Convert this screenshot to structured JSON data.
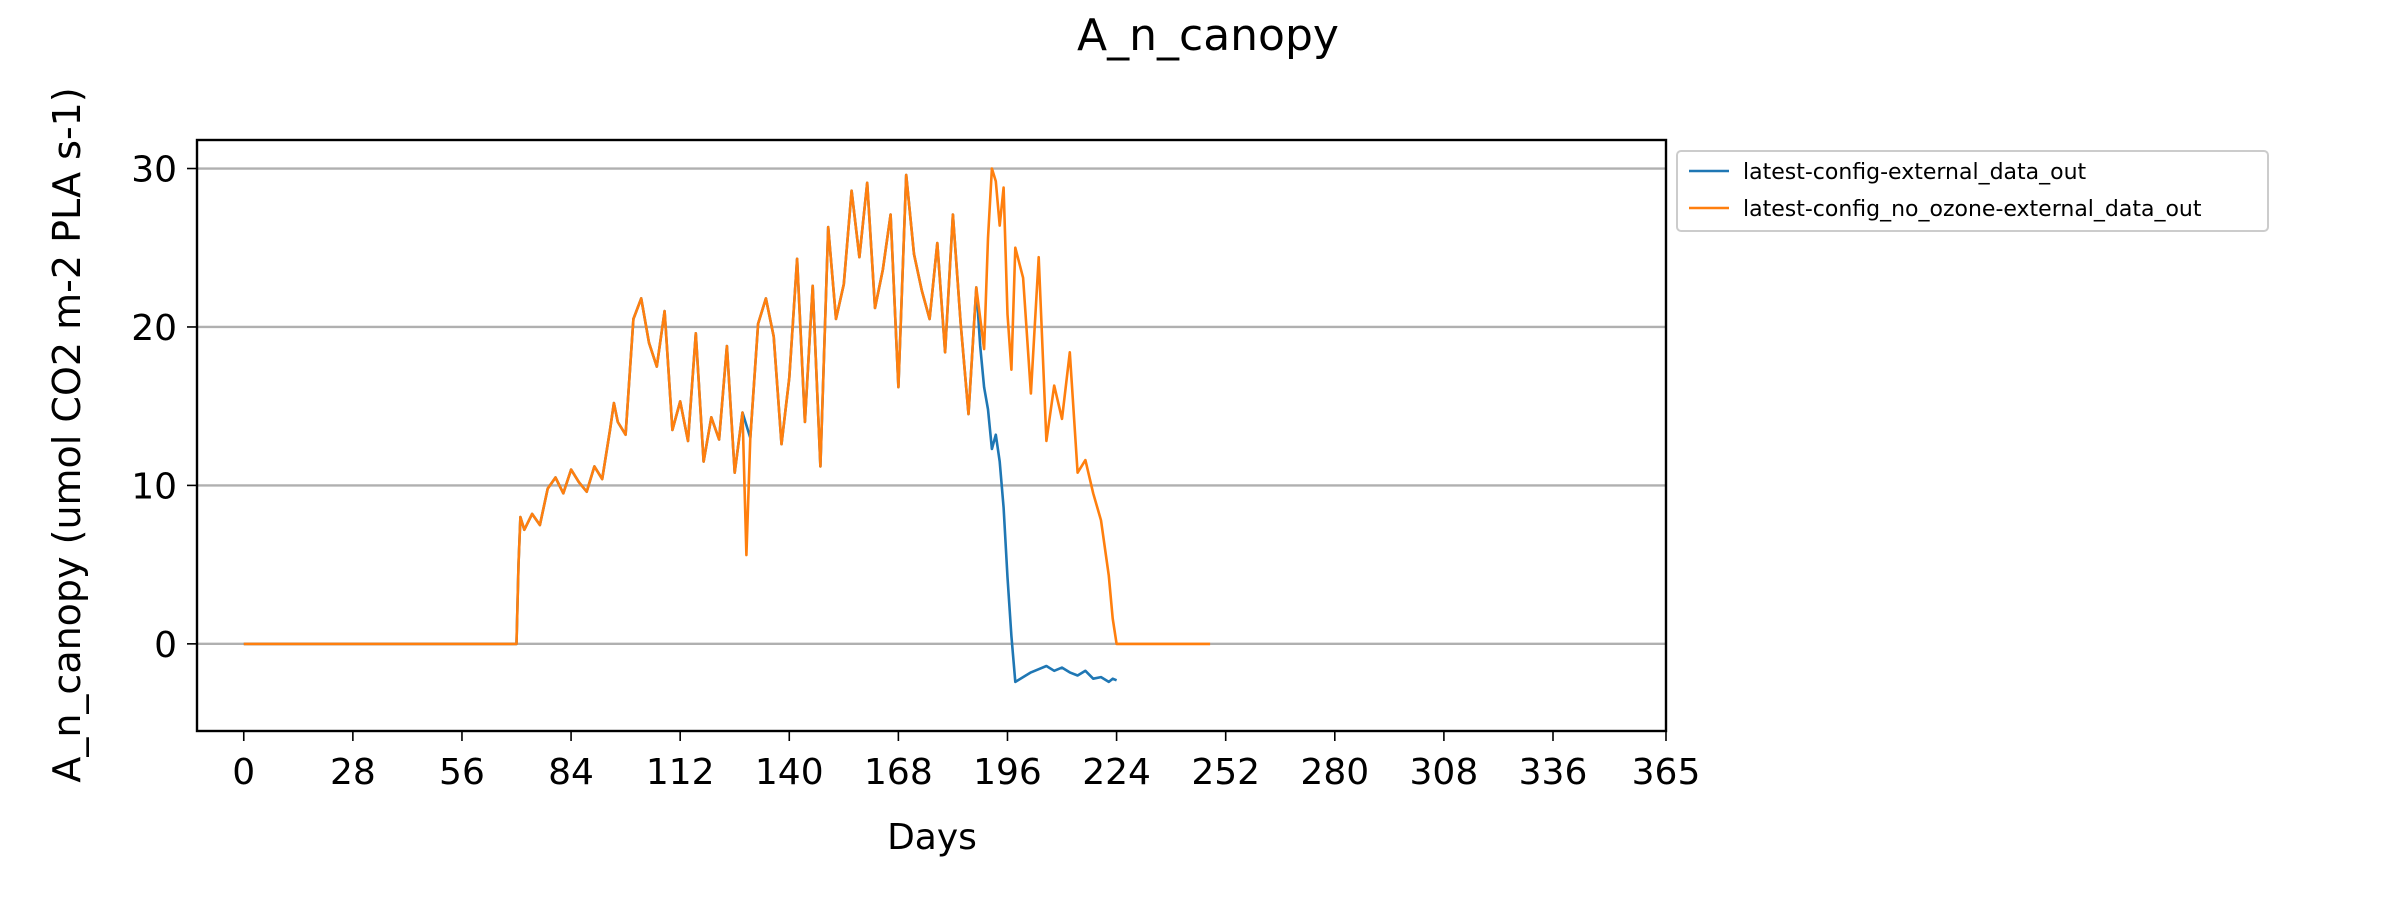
{
  "chart_data": {
    "type": "line",
    "title": "A_n_canopy",
    "xlabel": "Days",
    "ylabel": "A_n_canopy (umol CO2 m-2 PLA s-1)",
    "xlim": [
      -12,
      365
    ],
    "ylim": [
      -5.5,
      31.8
    ],
    "xticks": [
      0,
      28,
      56,
      84,
      112,
      140,
      168,
      196,
      224,
      252,
      280,
      308,
      336,
      365
    ],
    "yticks": [
      0,
      10,
      20,
      30
    ],
    "grid": "y-axis",
    "legend_position": "outside-top-right",
    "series": [
      {
        "name": "latest-config-external_data_out",
        "color": "#1f77b4",
        "x": [
          0,
          20,
          40,
          60,
          70,
          70.5,
          71,
          72,
          74,
          76,
          78,
          80,
          82,
          84,
          86,
          88,
          90,
          92,
          94,
          95,
          96,
          98,
          100,
          102,
          104,
          106,
          108,
          110,
          112,
          114,
          116,
          118,
          120,
          122,
          124,
          126,
          128,
          130,
          132,
          134,
          136,
          138,
          140,
          142,
          144,
          146,
          148,
          150,
          152,
          154,
          156,
          158,
          160,
          162,
          164,
          166,
          168,
          170,
          172,
          174,
          176,
          178,
          180,
          182,
          184,
          186,
          188,
          189,
          190,
          191,
          192,
          193,
          194,
          195,
          196,
          197,
          198,
          200,
          202,
          204,
          206,
          208,
          210,
          212,
          214,
          216,
          218,
          220,
          222,
          223,
          224
        ],
        "y": [
          0,
          0,
          0,
          0,
          0,
          5,
          8,
          7.2,
          8.2,
          7.5,
          9.8,
          10.5,
          9.5,
          11,
          10.2,
          9.6,
          11.2,
          10.4,
          13.5,
          15.2,
          14,
          13.2,
          20.5,
          21.8,
          19,
          17.5,
          21,
          13.5,
          15.3,
          12.8,
          19.6,
          11.5,
          14.3,
          12.9,
          18.8,
          10.8,
          14.6,
          13,
          20.2,
          21.8,
          19.4,
          12.6,
          16.8,
          24.3,
          14,
          22.6,
          11.2,
          26.3,
          20.5,
          22.7,
          28.6,
          24.4,
          29.1,
          21.2,
          23.6,
          27.1,
          16.2,
          29.6,
          24.6,
          22.3,
          20.5,
          25.3,
          18.4,
          27.1,
          20.2,
          14.5,
          22.5,
          18.8,
          16.2,
          14.8,
          12.3,
          13.2,
          11.5,
          8.6,
          4.2,
          0.5,
          -2.4,
          -2.1,
          -1.8,
          -1.6,
          -1.4,
          -1.7,
          -1.5,
          -1.8,
          -2,
          -1.7,
          -2.2,
          -2.1,
          -2.4,
          -2.2,
          -2.3
        ]
      },
      {
        "name": "latest-config_no_ozone-external_data_out",
        "color": "#ff7f0e",
        "x": [
          0,
          20,
          40,
          60,
          70,
          70.5,
          71,
          72,
          74,
          76,
          78,
          80,
          82,
          84,
          86,
          88,
          90,
          92,
          94,
          95,
          96,
          98,
          100,
          102,
          104,
          106,
          108,
          110,
          112,
          114,
          116,
          118,
          120,
          122,
          124,
          126,
          128,
          129,
          130,
          132,
          134,
          136,
          138,
          140,
          142,
          144,
          146,
          148,
          150,
          152,
          154,
          156,
          158,
          160,
          162,
          164,
          166,
          168,
          170,
          172,
          174,
          176,
          178,
          180,
          182,
          184,
          186,
          188,
          190,
          191,
          192,
          193,
          194,
          195,
          196,
          197,
          198,
          200,
          202,
          204,
          206,
          208,
          210,
          212,
          214,
          216,
          218,
          220,
          222,
          223,
          224,
          225,
          230,
          240,
          248
        ],
        "y": [
          0,
          0,
          0,
          0,
          0,
          5,
          8,
          7.2,
          8.2,
          7.5,
          9.8,
          10.5,
          9.5,
          11,
          10.2,
          9.6,
          11.2,
          10.4,
          13.5,
          15.2,
          14,
          13.2,
          20.5,
          21.8,
          19,
          17.5,
          21,
          13.5,
          15.3,
          12.8,
          19.6,
          11.5,
          14.3,
          12.9,
          18.8,
          10.8,
          14.6,
          5.6,
          13,
          20.2,
          21.8,
          19.4,
          12.6,
          16.8,
          24.3,
          14,
          22.6,
          11.2,
          26.3,
          20.5,
          22.7,
          28.6,
          24.4,
          29.1,
          21.2,
          23.6,
          27.1,
          16.2,
          29.6,
          24.6,
          22.3,
          20.5,
          25.3,
          18.4,
          27.1,
          20.2,
          14.5,
          22.5,
          18.6,
          25.6,
          30,
          29.2,
          26.4,
          28.8,
          20.8,
          17.3,
          25,
          23.1,
          15.8,
          24.4,
          12.8,
          16.3,
          14.2,
          18.4,
          10.8,
          11.6,
          9.5,
          7.8,
          4.3,
          1.6,
          0,
          0,
          0,
          0,
          0
        ]
      }
    ]
  }
}
